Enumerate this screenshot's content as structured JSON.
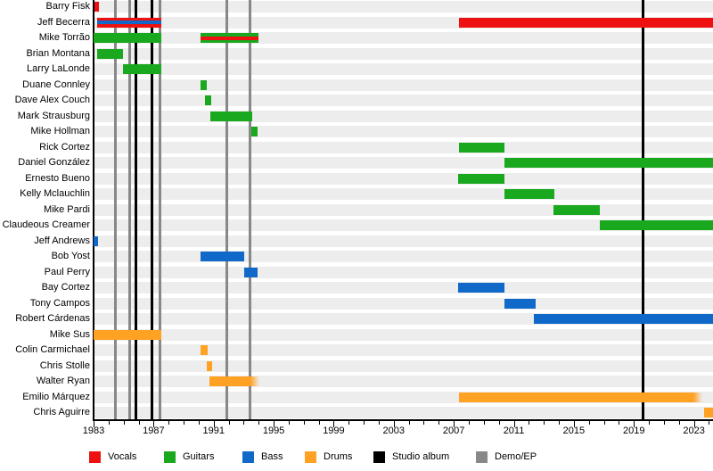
{
  "chart_data": {
    "type": "bar",
    "subtype": "band-member-timeline-gantt",
    "title": "",
    "x_axis": {
      "start_year": 1983,
      "end_year": 2024.3,
      "minor_tick_every_years": 1,
      "label_every_years": 4,
      "year_labels": [
        "1983",
        "1987",
        "1991",
        "1995",
        "1999",
        "2003",
        "2007",
        "2011",
        "2015",
        "2019",
        "2023"
      ]
    },
    "roles": {
      "vocals": {
        "label": "Vocals",
        "color": "#ee1111"
      },
      "guitars": {
        "label": "Guitars",
        "color": "#1aa81f"
      },
      "bass": {
        "label": "Bass",
        "color": "#1068c8"
      },
      "drums": {
        "label": "Drums",
        "color": "#ffa224"
      }
    },
    "events": {
      "studio_album": {
        "label": "Studio album",
        "color": "#000000",
        "years": [
          1985.85,
          1986.9,
          2019.6
        ]
      },
      "demo_ep": {
        "label": "Demo/EP",
        "color": "#888888",
        "years": [
          1984.45,
          1985.4,
          1987.4,
          1991.85,
          1993.45
        ]
      }
    },
    "members": [
      {
        "name": "Barry Fisk",
        "bars": [
          {
            "roles": [
              "vocals"
            ],
            "start": 1983.05,
            "end": 1983.35
          }
        ]
      },
      {
        "name": "Jeff Becerra",
        "bars": [
          {
            "roles": [
              "vocals",
              "bass"
            ],
            "start": 1983.25,
            "end": 1987.5
          },
          {
            "roles": [
              "vocals"
            ],
            "start": 2007.35,
            "end": 2024.3
          }
        ]
      },
      {
        "name": "Mike Torrão",
        "bars": [
          {
            "roles": [
              "guitars"
            ],
            "start": 1983.0,
            "end": 1987.5
          },
          {
            "roles": [
              "guitars",
              "vocals"
            ],
            "start": 1990.15,
            "end": 1994.0
          }
        ]
      },
      {
        "name": "Brian Montana",
        "bars": [
          {
            "roles": [
              "guitars"
            ],
            "start": 1983.25,
            "end": 1984.95
          }
        ]
      },
      {
        "name": "Larry LaLonde",
        "bars": [
          {
            "roles": [
              "guitars"
            ],
            "start": 1984.95,
            "end": 1987.5
          }
        ]
      },
      {
        "name": "Duane Connley",
        "bars": [
          {
            "roles": [
              "guitars"
            ],
            "start": 1990.15,
            "end": 1990.55
          }
        ]
      },
      {
        "name": "Dave Alex Couch",
        "bars": [
          {
            "roles": [
              "guitars"
            ],
            "start": 1990.4,
            "end": 1990.85
          }
        ]
      },
      {
        "name": "Mark Strausburg",
        "bars": [
          {
            "roles": [
              "guitars"
            ],
            "start": 1990.8,
            "end": 1993.55
          }
        ]
      },
      {
        "name": "Mike Hollman",
        "bars": [
          {
            "roles": [
              "guitars"
            ],
            "start": 1993.5,
            "end": 1993.95
          }
        ]
      },
      {
        "name": "Rick Cortez",
        "bars": [
          {
            "roles": [
              "guitars"
            ],
            "start": 2007.35,
            "end": 2010.4
          }
        ]
      },
      {
        "name": "Daniel González",
        "bars": [
          {
            "roles": [
              "guitars"
            ],
            "start": 2010.4,
            "end": 2024.3
          }
        ]
      },
      {
        "name": "Ernesto Bueno",
        "bars": [
          {
            "roles": [
              "guitars"
            ],
            "start": 2007.3,
            "end": 2010.4
          }
        ]
      },
      {
        "name": "Kelly Mclauchlin",
        "bars": [
          {
            "roles": [
              "guitars"
            ],
            "start": 2010.4,
            "end": 2013.7
          }
        ]
      },
      {
        "name": "Mike Pardi",
        "bars": [
          {
            "roles": [
              "guitars"
            ],
            "start": 2013.65,
            "end": 2016.75
          }
        ]
      },
      {
        "name": "Claudeous Creamer",
        "bars": [
          {
            "roles": [
              "guitars"
            ],
            "start": 2016.7,
            "end": 2024.3
          }
        ]
      },
      {
        "name": "Jeff Andrews",
        "bars": [
          {
            "roles": [
              "bass"
            ],
            "start": 1983.0,
            "end": 1983.3
          }
        ]
      },
      {
        "name": "Bob Yost",
        "bars": [
          {
            "roles": [
              "bass"
            ],
            "start": 1990.15,
            "end": 1993.05
          }
        ]
      },
      {
        "name": "Paul Perry",
        "bars": [
          {
            "roles": [
              "bass"
            ],
            "start": 1993.05,
            "end": 1993.95
          }
        ]
      },
      {
        "name": "Bay Cortez",
        "bars": [
          {
            "roles": [
              "bass"
            ],
            "start": 2007.3,
            "end": 2010.4
          }
        ]
      },
      {
        "name": "Tony Campos",
        "bars": [
          {
            "roles": [
              "bass"
            ],
            "start": 2010.4,
            "end": 2012.45
          }
        ]
      },
      {
        "name": "Robert Cárdenas",
        "bars": [
          {
            "roles": [
              "bass"
            ],
            "start": 2012.35,
            "end": 2024.3
          }
        ]
      },
      {
        "name": "Mike Sus",
        "bars": [
          {
            "roles": [
              "drums"
            ],
            "start": 1983.0,
            "end": 1987.5
          }
        ]
      },
      {
        "name": "Colin Carmichael",
        "bars": [
          {
            "roles": [
              "drums"
            ],
            "start": 1990.15,
            "end": 1990.6
          }
        ]
      },
      {
        "name": "Chris Stolle",
        "bars": [
          {
            "roles": [
              "drums"
            ],
            "start": 1990.55,
            "end": 1990.9
          }
        ]
      },
      {
        "name": "Walter Ryan",
        "bars": [
          {
            "roles": [
              "drums"
            ],
            "start": 1990.7,
            "end": 1994.05,
            "fade_end": true
          }
        ]
      },
      {
        "name": "Emilio Márquez",
        "bars": [
          {
            "roles": [
              "drums"
            ],
            "start": 2007.35,
            "end": 2023.55,
            "fade_end": true
          }
        ]
      },
      {
        "name": "Chris Aguirre",
        "bars": [
          {
            "roles": [
              "drums"
            ],
            "start": 2023.65,
            "end": 2024.3
          }
        ]
      }
    ],
    "legend": [
      {
        "key": "vocals",
        "label": "Vocals"
      },
      {
        "key": "guitars",
        "label": "Guitars"
      },
      {
        "key": "bass",
        "label": "Bass"
      },
      {
        "key": "drums",
        "label": "Drums"
      },
      {
        "key": "studio_album",
        "label": "Studio album"
      },
      {
        "key": "demo_ep",
        "label": "Demo/EP"
      }
    ]
  }
}
